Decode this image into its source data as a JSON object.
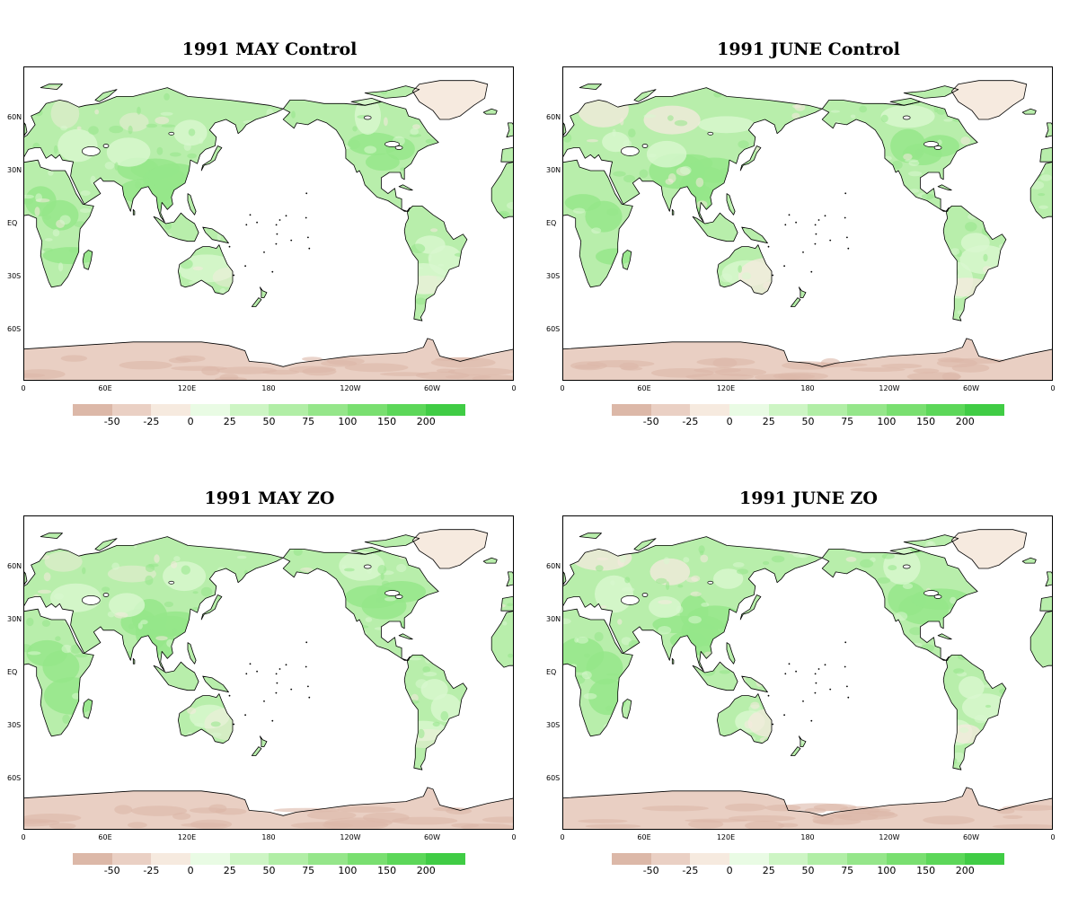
{
  "panels": [
    {
      "title": "1991 MAY Control",
      "variant": 0
    },
    {
      "title": "1991 JUNE Control",
      "variant": 1
    },
    {
      "title": "1991 MAY ZO",
      "variant": 2
    },
    {
      "title": "1991 JUNE ZO",
      "variant": 3
    }
  ],
  "axes": {
    "lat_labels": [
      "60N",
      "30N",
      "EQ",
      "30S",
      "60S"
    ],
    "lon_labels": [
      "0",
      "60E",
      "120E",
      "180",
      "120W",
      "60W",
      "0"
    ]
  },
  "legend": {
    "ticks": [
      "-50",
      "-25",
      "0",
      "25",
      "50",
      "75",
      "100",
      "150",
      "200"
    ],
    "colors": [
      "#dcb8a8",
      "#ead0c4",
      "#f6eadf",
      "#e9fbe4",
      "#cdf5c4",
      "#b1eea6",
      "#95e68a",
      "#79df70",
      "#5cd759",
      "#40cc45"
    ]
  },
  "colors": {
    "ocean": "#ffffff",
    "land_base": "#b8eeab",
    "land_strong": "#95e68a",
    "land_light": "#d9f7d0",
    "ice": "#e9cfc3",
    "ice_dark": "#dcb8a8",
    "greenland": "#f6eadf",
    "outline": "#000000"
  }
}
